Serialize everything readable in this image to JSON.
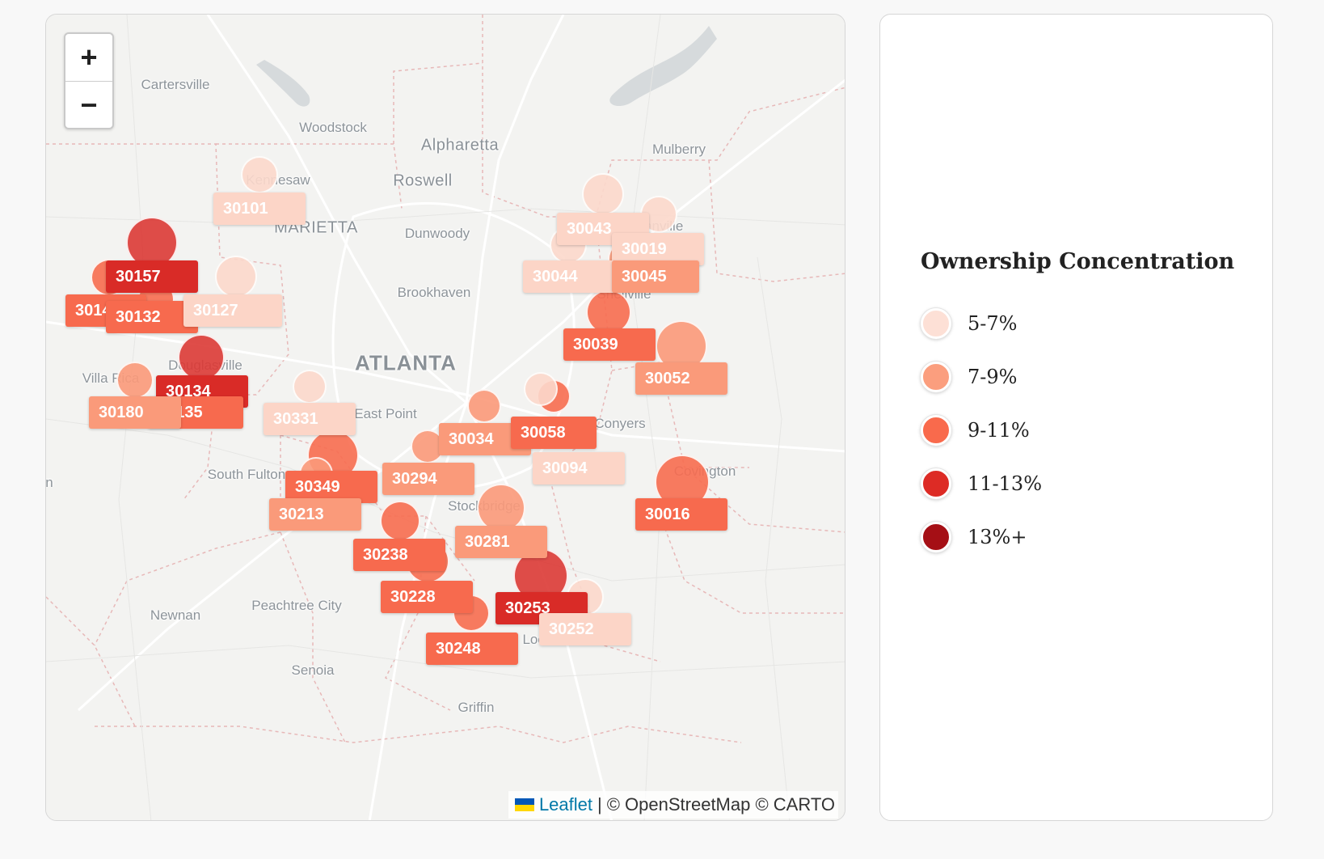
{
  "map": {
    "zoom_in_label": "+",
    "zoom_out_label": "−",
    "attribution": {
      "flag_icon": "ukraine-flag-icon",
      "leaflet_label": "Leaflet",
      "separator": "|",
      "text": "© OpenStreetMap © CARTO"
    },
    "place_labels": [
      {
        "name": "Cartersville",
        "class": "minor"
      },
      {
        "name": "Woodstock",
        "class": "minor"
      },
      {
        "name": "Alpharetta",
        "class": "major"
      },
      {
        "name": "Mulberry",
        "class": "minor"
      },
      {
        "name": "Kennesaw",
        "class": "minor"
      },
      {
        "name": "Roswell",
        "class": "major"
      },
      {
        "name": "MARIETTA",
        "class": "major"
      },
      {
        "name": "Dunwoody",
        "class": "minor"
      },
      {
        "name": "Brookhaven",
        "class": "minor"
      },
      {
        "name": "ATLANTA",
        "class": "city"
      },
      {
        "name": "Villa Rica",
        "class": "minor"
      },
      {
        "name": "Douglasville",
        "class": "minor"
      },
      {
        "name": "East Point",
        "class": "minor"
      },
      {
        "name": "Conyers",
        "class": "minor"
      },
      {
        "name": "South Fulton",
        "class": "minor"
      },
      {
        "name": "Covington",
        "class": "minor"
      },
      {
        "name": "Stockbridge",
        "class": "minor"
      },
      {
        "name": "Peachtree City",
        "class": "minor"
      },
      {
        "name": "Newnan",
        "class": "minor"
      },
      {
        "name": "Senoia",
        "class": "minor"
      },
      {
        "name": "Locust Grove",
        "class": "minor"
      },
      {
        "name": "Griffin",
        "class": "minor"
      },
      {
        "name": "Snellville",
        "class": "minor"
      },
      {
        "name": "Loganville",
        "class": "minor"
      },
      {
        "name": "n",
        "class": "minor"
      }
    ],
    "zip_markers": [
      {
        "zip": "30101",
        "bin": 0
      },
      {
        "zip": "30157",
        "bin": 3
      },
      {
        "zip": "30141",
        "bin": 2
      },
      {
        "zip": "30132",
        "bin": 2
      },
      {
        "zip": "30127",
        "bin": 0
      },
      {
        "zip": "30134",
        "bin": 3
      },
      {
        "zip": "30135",
        "bin": 2
      },
      {
        "zip": "30180",
        "bin": 1
      },
      {
        "zip": "30331",
        "bin": 0
      },
      {
        "zip": "30043",
        "bin": 0
      },
      {
        "zip": "30019",
        "bin": 0
      },
      {
        "zip": "30044",
        "bin": 0
      },
      {
        "zip": "30045",
        "bin": 1
      },
      {
        "zip": "30039",
        "bin": 2
      },
      {
        "zip": "30052",
        "bin": 1
      },
      {
        "zip": "30034",
        "bin": 1
      },
      {
        "zip": "30058",
        "bin": 2
      },
      {
        "zip": "30094",
        "bin": 0
      },
      {
        "zip": "30294",
        "bin": 1
      },
      {
        "zip": "30349",
        "bin": 2
      },
      {
        "zip": "30213",
        "bin": 1
      },
      {
        "zip": "30016",
        "bin": 2
      },
      {
        "zip": "30281",
        "bin": 1
      },
      {
        "zip": "30238",
        "bin": 2
      },
      {
        "zip": "30228",
        "bin": 2
      },
      {
        "zip": "30253",
        "bin": 3
      },
      {
        "zip": "30252",
        "bin": 0
      },
      {
        "zip": "30248",
        "bin": 2
      }
    ]
  },
  "legend": {
    "title": "Ownership Concentration",
    "items": [
      {
        "label": "5-7%",
        "color": "#fde0d6"
      },
      {
        "label": "7-9%",
        "color": "#fb9e7e"
      },
      {
        "label": "9-11%",
        "color": "#f96a4c"
      },
      {
        "label": "11-13%",
        "color": "#dd2b25"
      },
      {
        "label": "13%+",
        "color": "#a50f15"
      }
    ]
  },
  "colors": {
    "bin_fill": [
      "#fcd9cc",
      "#fb9a7a",
      "#f86d50",
      "#dc3a36",
      "#a50f15"
    ],
    "bin_label": [
      "#fcd5c7",
      "#fa9a7a",
      "#f76a4e",
      "#d92b27",
      "#a50f15"
    ],
    "leaflet_link": "#0078a8"
  }
}
